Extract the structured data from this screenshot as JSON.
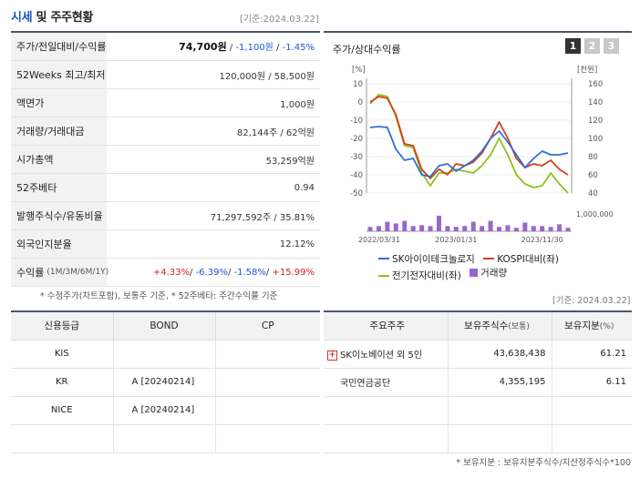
{
  "header": {
    "title_blue": "시세",
    "title_rest": " 및 주주현황",
    "date": "[기준:2024.03.22]"
  },
  "market": [
    {
      "label": "주가/전일대비/수익률",
      "price": "74,700원",
      "change": "-1,100원",
      "ret": "-1.45%"
    },
    {
      "label": "52Weeks 최고/최저",
      "value": "120,000원 / 58,500원"
    },
    {
      "label": "액면가",
      "value": "1,000원"
    },
    {
      "label": "거래량/거래대금",
      "value": "82,144주 / 62억원"
    },
    {
      "label": "시가총액",
      "value": "53,259억원"
    },
    {
      "label": "52주베타",
      "value": "0.94"
    },
    {
      "label": "발행주식수/유동비율",
      "value": "71,297,592주 / 35.81%"
    },
    {
      "label": "외국인지분율",
      "value": "12.12%"
    },
    {
      "label": "수익률",
      "sub": "(1M/3M/6M/1Y)",
      "r1": "+4.33%",
      "r2": "-6.39%",
      "r3": "-1.58%",
      "r4": "+15.99%"
    }
  ],
  "notes": {
    "adj": "* 수정주가(차트포함), 보통주 기준, * 52주베타: 주간수익률 기준",
    "date2": "[기준: 2024.03.22]",
    "ratio": "* 보유지분 : 보유지분주식수/지산정주식수*100"
  },
  "chart_panel": {
    "title": "주가/상대수익률",
    "buttons": [
      "1",
      "2",
      "3"
    ],
    "legend": [
      "SK아이이테크놀로지",
      "KOSPI대비(좌)",
      "전기전자대비(좌)",
      "거래량"
    ],
    "colors": {
      "sk": "#2f6fd6",
      "kospi": "#d0421b",
      "elec": "#8cc21a",
      "volume": "#9966cc"
    }
  },
  "chart_data": {
    "type": "line",
    "left_unit": "[%]",
    "right_unit": "[천원]",
    "left_ticks": [
      "10",
      "0",
      "-10",
      "-20",
      "-30",
      "-40",
      "-50"
    ],
    "right_ticks": [
      "160",
      "140",
      "120",
      "100",
      "80",
      "60",
      "40"
    ],
    "volume_tick": "1,000,000",
    "x_ticks": [
      "2022/03/31",
      "2023/01/31",
      "2023/11/30"
    ],
    "ylim_left": [
      -50,
      10
    ],
    "ylim_right": [
      40,
      160
    ],
    "series": [
      {
        "name": "SK아이이테크놀로지",
        "axis": "right",
        "values": [
          112,
          113,
          112,
          88,
          76,
          78,
          60,
          58,
          70,
          72,
          64,
          70,
          76,
          86,
          100,
          108,
          96,
          82,
          68,
          78,
          86,
          82,
          82,
          84
        ]
      },
      {
        "name": "KOSPI대비(좌)",
        "axis": "left",
        "values": [
          0,
          3,
          2,
          -7,
          -23,
          -24,
          -37,
          -42,
          -37,
          -40,
          -34,
          -35,
          -33,
          -28,
          -20,
          -11,
          -20,
          -31,
          -36,
          -34,
          -35,
          -32,
          -37,
          -40
        ]
      },
      {
        "name": "전기전자대비(좌)",
        "axis": "left",
        "values": [
          -1,
          4,
          3,
          -8,
          -24,
          -25,
          -39,
          -46,
          -39,
          -39,
          -37,
          -38,
          -39,
          -35,
          -29,
          -20,
          -29,
          -40,
          -45,
          -47,
          -46,
          -39,
          -45,
          -50
        ]
      },
      {
        "name": "거래량",
        "axis": "volume",
        "values": [
          0.25,
          0.3,
          0.55,
          0.45,
          0.6,
          0.3,
          0.35,
          0.3,
          0.9,
          0.3,
          0.25,
          0.3,
          0.55,
          0.3,
          0.6,
          0.25,
          0.35,
          0.2,
          0.5,
          0.3,
          0.3,
          0.25,
          0.4,
          0.2
        ]
      }
    ]
  },
  "credit": {
    "headers": [
      "신용등급",
      "BOND",
      "CP"
    ],
    "rows": [
      [
        "KIS",
        "",
        ""
      ],
      [
        "KR",
        "A [20240214]",
        ""
      ],
      [
        "NICE",
        "A [20240214]",
        ""
      ],
      [
        "",
        "",
        ""
      ]
    ]
  },
  "holders": {
    "headers": [
      "주요주주",
      "보유주식수",
      "(보통)",
      "보유지분",
      "(%)"
    ],
    "rows": [
      {
        "name": "SK이노베이션 외 5인",
        "plus": "+",
        "shares": "43,638,438",
        "pct": "61.21"
      },
      {
        "name": "국민연금공단",
        "plus": "",
        "shares": "4,355,195",
        "pct": "6.11"
      },
      {
        "name": "",
        "plus": "",
        "shares": "",
        "pct": ""
      },
      {
        "name": "",
        "plus": "",
        "shares": "",
        "pct": ""
      }
    ]
  }
}
